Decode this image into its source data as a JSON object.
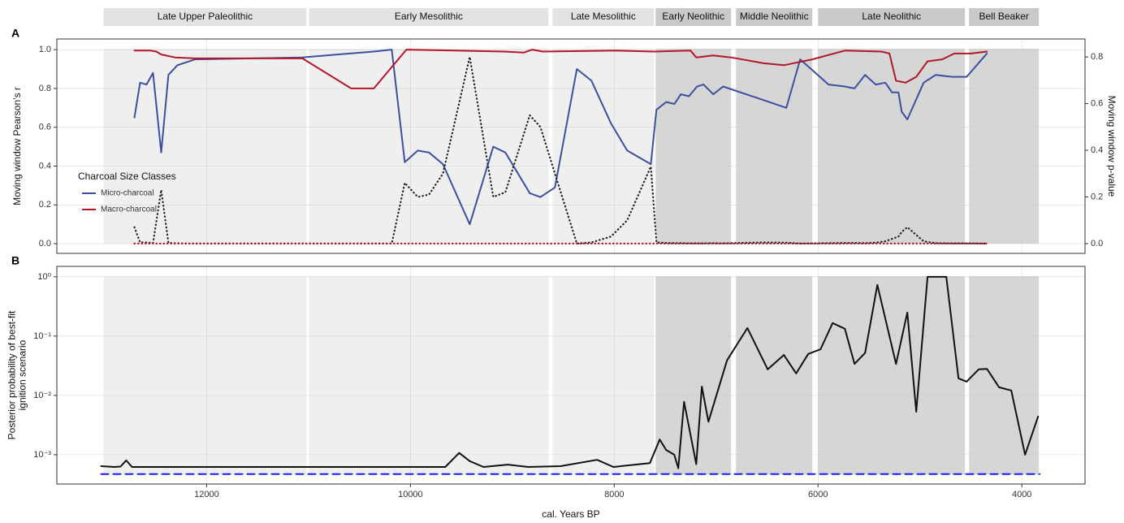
{
  "xlabel": "cal. Years BP",
  "xlim": [
    13470,
    3380
  ],
  "xticks": [
    12000,
    10000,
    8000,
    6000,
    4000
  ],
  "periods": [
    {
      "name": "Late Upper Paleolithic",
      "start": 13012,
      "end": 11020,
      "color": "#efefef",
      "label_color": "#e3e3e3"
    },
    {
      "name": "Early Mesolithic",
      "start": 10996,
      "end": 8645,
      "color": "#efefef",
      "label_color": "#e3e3e3"
    },
    {
      "name": "Late Mesolithic",
      "start": 8605,
      "end": 7610,
      "color": "#efefef",
      "label_color": "#e3e3e3"
    },
    {
      "name": "Early Neolithic",
      "start": 7594,
      "end": 6853,
      "color": "#d6d6d6",
      "label_color": "#c9c9c9"
    },
    {
      "name": "Middle Neolithic",
      "start": 6805,
      "end": 6056,
      "color": "#d6d6d6",
      "label_color": "#c9c9c9"
    },
    {
      "name": "Late Neolithic",
      "start": 6000,
      "end": 4558,
      "color": "#d6d6d6",
      "label_color": "#c9c9c9"
    },
    {
      "name": "Bell Beaker",
      "start": 4518,
      "end": 3833,
      "color": "#d6d6d6",
      "label_color": "#c9c9c9"
    }
  ],
  "chart_data": [
    {
      "type": "line",
      "panel": "A",
      "ylabel": [
        "Moving window Pearson’s r"
      ],
      "y2label": "Moving window p-value",
      "legend_title": "Charcoal Size Classes",
      "grid": true,
      "ylim": [
        -0.05,
        1.055
      ],
      "yticks": [
        {
          "value": 0,
          "label": "0.0"
        },
        {
          "value": 0.2,
          "label": "0.2"
        },
        {
          "value": 0.4,
          "label": "0.4"
        },
        {
          "value": 0.6,
          "label": "0.6"
        },
        {
          "value": 0.8,
          "label": "0.8"
        },
        {
          "value": 1,
          "label": "1.0"
        }
      ],
      "y2lim": [
        -0.042,
        0.877
      ],
      "y2ticks": [
        {
          "value": 0,
          "label": "0.0"
        },
        {
          "value": 0.2,
          "label": "0.2"
        },
        {
          "value": 0.4,
          "label": "0.4"
        },
        {
          "value": 0.6,
          "label": "0.6"
        },
        {
          "value": 0.8,
          "label": "0.8"
        }
      ],
      "series": [
        {
          "name": "Micro-charcoal",
          "color": "#3d4f9e",
          "dash": "solid",
          "x": [
            12709,
            12653,
            12590,
            12526,
            12446,
            12375,
            12287,
            12112,
            11060,
            10598,
            10359,
            10183,
            10056,
            9928,
            9817,
            9681,
            9418,
            9187,
            9068,
            8829,
            8725,
            8582,
            8367,
            8223,
            8032,
            7873,
            7641,
            7586,
            7490,
            7410,
            7347,
            7267,
            7187,
            7124,
            7028,
            6932,
            6534,
            6311,
            6175,
            5897,
            5737,
            5642,
            5538,
            5434,
            5339,
            5275,
            5211,
            5179,
            5124,
            4964,
            4845,
            4685,
            4542,
            4343
          ],
          "values": [
            0.65,
            0.83,
            0.82,
            0.88,
            0.47,
            0.87,
            0.92,
            0.95,
            0.96,
            0.98,
            0.99,
            1.0,
            0.42,
            0.48,
            0.47,
            0.41,
            0.1,
            0.5,
            0.47,
            0.26,
            0.24,
            0.29,
            0.9,
            0.84,
            0.62,
            0.48,
            0.41,
            0.69,
            0.73,
            0.72,
            0.77,
            0.76,
            0.81,
            0.82,
            0.77,
            0.81,
            0.74,
            0.7,
            0.95,
            0.82,
            0.81,
            0.8,
            0.87,
            0.82,
            0.83,
            0.78,
            0.78,
            0.68,
            0.64,
            0.83,
            0.87,
            0.86,
            0.86,
            0.98
          ]
        },
        {
          "name": "Macro-charcoal",
          "color": "#b2182b",
          "dash": "solid",
          "x": [
            12709,
            12550,
            12494,
            12446,
            12311,
            12112,
            11060,
            10582,
            10359,
            10040,
            9562,
            9084,
            8885,
            8805,
            8701,
            7968,
            7610,
            7251,
            7195,
            7028,
            6853,
            6534,
            6335,
            6056,
            5737,
            5379,
            5299,
            5235,
            5140,
            5036,
            4925,
            4781,
            4662,
            4502,
            4343
          ],
          "values": [
            0.995,
            0.995,
            0.99,
            0.975,
            0.96,
            0.955,
            0.955,
            0.8,
            0.8,
            1.0,
            0.995,
            0.99,
            0.985,
            1.0,
            0.99,
            0.995,
            0.99,
            0.995,
            0.96,
            0.97,
            0.96,
            0.93,
            0.92,
            0.95,
            0.995,
            0.99,
            0.98,
            0.84,
            0.83,
            0.86,
            0.94,
            0.95,
            0.98,
            0.98,
            0.99
          ]
        },
        {
          "color": "#222222",
          "dash": "dotted",
          "axis": "y2",
          "x": [
            12709,
            12653,
            12590,
            12526,
            12446,
            12375,
            12287,
            12112,
            11060,
            10598,
            10359,
            10183,
            10056,
            9928,
            9817,
            9681,
            9418,
            9187,
            9068,
            8829,
            8725,
            8582,
            8367,
            8223,
            8032,
            7873,
            7641,
            7586,
            7490,
            7410,
            7347,
            7267,
            7187,
            7124,
            7028,
            6932,
            6534,
            6311,
            6175,
            5897,
            5737,
            5642,
            5538,
            5434,
            5339,
            5275,
            5211,
            5179,
            5124,
            4964,
            4845,
            4685,
            4542,
            4343
          ],
          "values": [
            0.07,
            0.005,
            0.005,
            0.002,
            0.23,
            0.003,
            0.001,
            0,
            0,
            0,
            0,
            0,
            0.26,
            0.2,
            0.21,
            0.3,
            0.8,
            0.2,
            0.22,
            0.55,
            0.5,
            0.3,
            0,
            0.005,
            0.03,
            0.1,
            0.33,
            0.005,
            0.003,
            0.002,
            0.002,
            0.001,
            0.001,
            0.001,
            0.002,
            0.001,
            0.005,
            0.004,
            0,
            0.002,
            0.003,
            0.003,
            0.002,
            0.004,
            0.01,
            0.02,
            0.03,
            0.05,
            0.07,
            0.01,
            0.002,
            0.001,
            0.001,
            0
          ]
        },
        {
          "color": "#b2182b",
          "dash": "dotted",
          "axis": "y2",
          "x": [
            12709,
            12550,
            12494,
            12446,
            12311,
            12112,
            11060,
            10582,
            10359,
            10040,
            9562,
            9084,
            8885,
            8805,
            8701,
            7968,
            7610,
            7251,
            7195,
            7028,
            6853,
            6534,
            6335,
            6056,
            5737,
            5379,
            5299,
            5235,
            5140,
            5036,
            4925,
            4781,
            4662,
            4502,
            4343
          ],
          "values": [
            0,
            0,
            0,
            0,
            0,
            0,
            0,
            0,
            0,
            0,
            0,
            0,
            0,
            0,
            0,
            0,
            0,
            0,
            0,
            0,
            0,
            0,
            0,
            0,
            0,
            0,
            0,
            0,
            0,
            0,
            0,
            0,
            0,
            0,
            0
          ]
        }
      ]
    },
    {
      "type": "line",
      "panel": "B",
      "ylog": true,
      "grid": true,
      "ylabel": [
        "Posterior probability of best-fit",
        "ignition scenario"
      ],
      "ylim": [
        0.00032,
        1.5
      ],
      "yticks": [
        {
          "value": 1,
          "label": "10⁰"
        },
        {
          "value": 0.1,
          "label": "10⁻¹"
        },
        {
          "value": 0.01,
          "label": "10⁻²"
        },
        {
          "value": 0.001,
          "label": "10⁻³"
        }
      ],
      "series": [
        {
          "color": "#111111",
          "dash": "solid",
          "x": [
            13036,
            12908,
            12845,
            12789,
            12733,
            9658,
            9522,
            9418,
            9283,
            9044,
            8845,
            8526,
            8168,
            8008,
            7650,
            7554,
            7490,
            7411,
            7371,
            7315,
            7195,
            7140,
            7076,
            6893,
            6693,
            6494,
            6335,
            6215,
            6096,
            5976,
            5857,
            5737,
            5642,
            5538,
            5418,
            5235,
            5124,
            5036,
            4925,
            4741,
            4622,
            4542,
            4423,
            4343,
            4223,
            4104,
            3968,
            3841
          ],
          "values": [
            0.00064,
            0.00062,
            0.00063,
            0.0008,
            0.00062,
            0.00062,
            0.00107,
            0.00078,
            0.00062,
            0.00068,
            0.00062,
            0.00064,
            0.00082,
            0.00062,
            0.00072,
            0.0018,
            0.0012,
            0.001,
            0.00059,
            0.0078,
            0.00069,
            0.0141,
            0.0036,
            0.039,
            0.137,
            0.0275,
            0.048,
            0.0235,
            0.05,
            0.06,
            0.166,
            0.133,
            0.034,
            0.052,
            0.73,
            0.034,
            0.25,
            0.0053,
            1.0,
            1.0,
            0.0194,
            0.0171,
            0.0275,
            0.028,
            0.0137,
            0.0121,
            0.001,
            0.0044
          ]
        },
        {
          "color": "#1a1aff",
          "dash": "dashed",
          "x": [
            13036,
            3825
          ],
          "values": [
            0.00047,
            0.00047
          ]
        }
      ]
    }
  ]
}
